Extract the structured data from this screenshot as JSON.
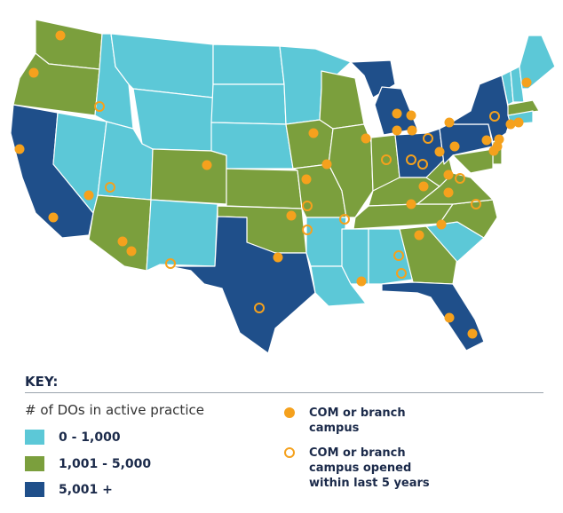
{
  "key": {
    "title": "KEY:",
    "subtitle": "# of DOs in active practice",
    "practice_ranges": [
      {
        "label": "0 - 1,000",
        "color": "#5cc8d7"
      },
      {
        "label": "1,001 - 5,000",
        "color": "#7b9f3d"
      },
      {
        "label": "5,001 +",
        "color": "#1f4f8a"
      }
    ],
    "campus_types": [
      {
        "label": "COM or branch campus",
        "color": "#f5a11d"
      },
      {
        "label": "COM or branch campus opened within last 5 years",
        "color": "#f5a11d"
      }
    ]
  }
}
